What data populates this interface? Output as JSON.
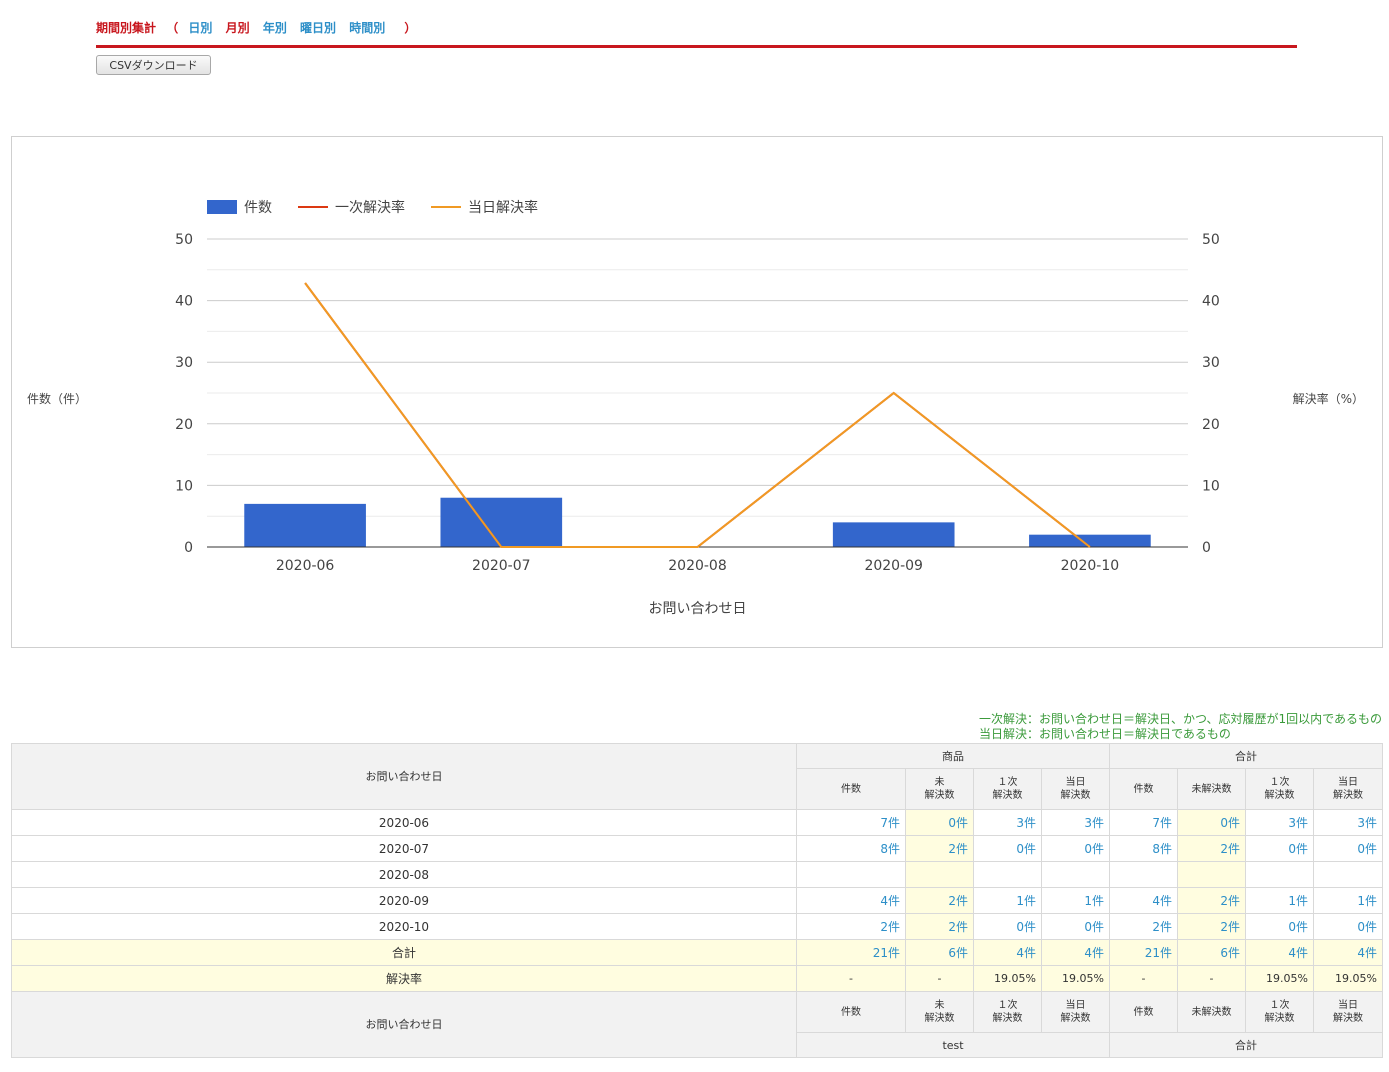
{
  "header": {
    "title": "期間別集計",
    "open_paren": "（",
    "close_paren": "）",
    "tabs": [
      {
        "label": "日別",
        "active": false
      },
      {
        "label": "月別",
        "active": true
      },
      {
        "label": "年別",
        "active": false
      },
      {
        "label": "曜日別",
        "active": false
      },
      {
        "label": "時間別",
        "active": false
      }
    ]
  },
  "toolbar": {
    "csv_label": "CSVダウンロード"
  },
  "chart_data": {
    "type": "bar",
    "categories": [
      "2020-06",
      "2020-07",
      "2020-08",
      "2020-09",
      "2020-10"
    ],
    "series": [
      {
        "name": "件数",
        "type": "bar",
        "axis": "left",
        "color": "#3366cc",
        "values": [
          7,
          8,
          0,
          4,
          2
        ]
      },
      {
        "name": "一次解決率",
        "type": "line",
        "axis": "right",
        "color": "#dc3912",
        "values": [
          42.86,
          0,
          0,
          25,
          0
        ]
      },
      {
        "name": "当日解決率",
        "type": "line",
        "axis": "right",
        "color": "#f09a24",
        "values": [
          42.86,
          0,
          0,
          25,
          0
        ]
      }
    ],
    "xlabel": "お問い合わせ日",
    "ylabel": "件数（件）",
    "y2label": "解決率（%）",
    "ylim": [
      0,
      50
    ],
    "y2lim": [
      0,
      50
    ],
    "yticks": [
      0,
      10,
      20,
      30,
      40,
      50
    ],
    "legend": "top-left",
    "grid": true
  },
  "notes": [
    "一次解決：お問い合わせ日＝解決日、かつ、応対履歴が1回以内であるもの",
    "当日解決：お問い合わせ日＝解決日であるもの"
  ],
  "table": {
    "date_header": "お問い合わせ日",
    "groups": [
      "商品",
      "合計"
    ],
    "footer_groups": [
      "test",
      "合計"
    ],
    "col_headers": [
      "件数",
      "未\n解決数",
      "１次\n解決数",
      "当日\n解決数"
    ],
    "col_headers_total": [
      "件数",
      "未解決数",
      "１次\n解決数",
      "当日\n解決数"
    ],
    "rows": [
      {
        "date": "2020-06",
        "product": [
          "7件",
          "0件",
          "3件",
          "3件"
        ],
        "total": [
          "7件",
          "0件",
          "3件",
          "3件"
        ]
      },
      {
        "date": "2020-07",
        "product": [
          "8件",
          "2件",
          "0件",
          "0件"
        ],
        "total": [
          "8件",
          "2件",
          "0件",
          "0件"
        ]
      },
      {
        "date": "2020-08",
        "product": [
          "",
          "",
          "",
          ""
        ],
        "total": [
          "",
          "",
          "",
          ""
        ]
      },
      {
        "date": "2020-09",
        "product": [
          "4件",
          "2件",
          "1件",
          "1件"
        ],
        "total": [
          "4件",
          "2件",
          "1件",
          "1件"
        ]
      },
      {
        "date": "2020-10",
        "product": [
          "2件",
          "2件",
          "0件",
          "0件"
        ],
        "total": [
          "2件",
          "2件",
          "0件",
          "0件"
        ]
      }
    ],
    "sum_row": {
      "label": "合計",
      "product": [
        "21件",
        "6件",
        "4件",
        "4件"
      ],
      "total": [
        "21件",
        "6件",
        "4件",
        "4件"
      ]
    },
    "rate_row": {
      "label": "解決率",
      "product": [
        "-",
        "-",
        "19.05%",
        "19.05%"
      ],
      "total": [
        "-",
        "-",
        "19.05%",
        "19.05%"
      ]
    }
  }
}
